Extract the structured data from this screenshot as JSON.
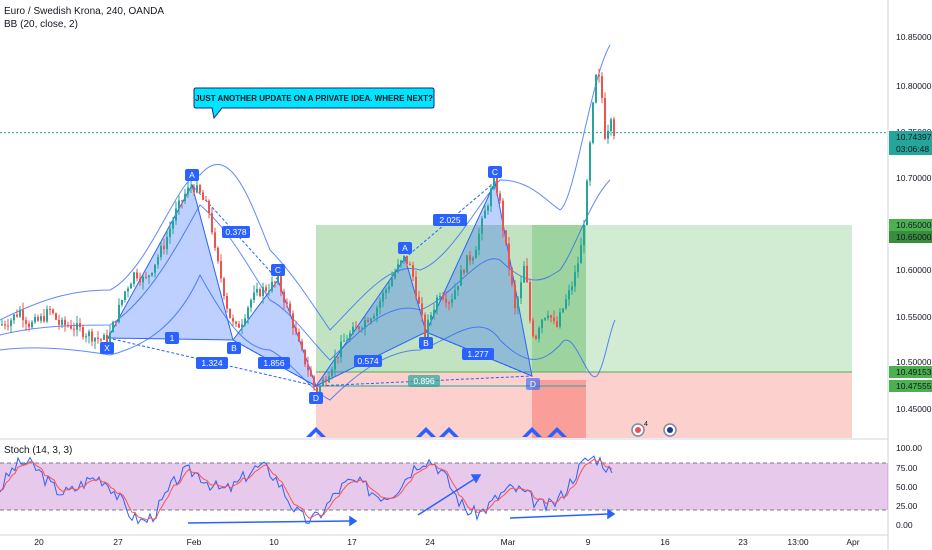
{
  "header": {
    "symbol_title": "Euro / Swedish Krona, 240, OANDA",
    "indicator_bb": "BB (20, close, 2)",
    "indicator_stoch": "Stoch (14, 3, 3)"
  },
  "callout": "JUST ANOTHER UPDATE ON A PRIVATE IDEA. WHERE NEXT?",
  "price_axis": {
    "ticks": [
      "10.85000",
      "10.80000",
      "10.75000",
      "10.70000",
      "10.65000",
      "10.60000",
      "10.55000",
      "10.50000",
      "10.45000"
    ],
    "current_price": "10.74397",
    "countdown": "03:06:48",
    "target_tags": [
      "10.65000",
      "10.65000"
    ],
    "entry_tag": "10.49153",
    "stop_tag": "10.47555"
  },
  "stoch_axis": {
    "ticks": [
      "100.00",
      "75.00",
      "50.00",
      "25.00",
      "0.00"
    ]
  },
  "time_axis": {
    "labels": [
      "20",
      "27",
      "Feb",
      "10",
      "17",
      "24",
      "Mar",
      "9",
      "16",
      "23",
      "13:00",
      "Apr"
    ]
  },
  "patterns": {
    "points_1": [
      "X",
      "A",
      "B",
      "C",
      "D"
    ],
    "ratios_1": [
      "0.378",
      "1",
      "1.324",
      "1.856"
    ],
    "points_2": [
      "A",
      "B",
      "C",
      "D"
    ],
    "ratios_2": [
      "0.574",
      "2.025",
      "1.277",
      "0.896"
    ]
  },
  "event_badge": "4",
  "colors": {
    "bull": "#26a69a",
    "bear": "#ef5350",
    "bb": "#2962ff",
    "target_zone": "#4caf50",
    "stop_zone": "#f44336",
    "pattern": "#2962ff",
    "stoch_k": "#2962ff",
    "stoch_d": "#ff5252",
    "stoch_band": "#9c27b0",
    "price_line": "#26a69a"
  },
  "chart_data": {
    "type": "candlestick",
    "title": "Euro / Swedish Krona, 240, OANDA",
    "ylim": [
      10.41,
      10.87
    ],
    "close_path": [
      [
        0,
        10.545
      ],
      [
        10,
        10.55
      ],
      [
        20,
        10.56
      ],
      [
        30,
        10.545
      ],
      [
        40,
        10.55
      ],
      [
        50,
        10.56
      ],
      [
        60,
        10.545
      ],
      [
        70,
        10.545
      ],
      [
        80,
        10.54
      ],
      [
        90,
        10.535
      ],
      [
        100,
        10.53
      ],
      [
        108,
        10.53
      ],
      [
        115,
        10.55
      ],
      [
        125,
        10.58
      ],
      [
        135,
        10.6
      ],
      [
        145,
        10.59
      ],
      [
        155,
        10.61
      ],
      [
        165,
        10.63
      ],
      [
        175,
        10.66
      ],
      [
        185,
        10.68
      ],
      [
        192,
        10.69
      ],
      [
        200,
        10.68
      ],
      [
        210,
        10.66
      ],
      [
        215,
        10.62
      ],
      [
        222,
        10.59
      ],
      [
        228,
        10.56
      ],
      [
        235,
        10.54
      ],
      [
        242,
        10.55
      ],
      [
        250,
        10.57
      ],
      [
        260,
        10.58
      ],
      [
        270,
        10.585
      ],
      [
        278,
        10.59
      ],
      [
        285,
        10.57
      ],
      [
        292,
        10.55
      ],
      [
        300,
        10.52
      ],
      [
        308,
        10.5
      ],
      [
        316,
        10.475
      ],
      [
        325,
        10.49
      ],
      [
        335,
        10.51
      ],
      [
        345,
        10.53
      ],
      [
        355,
        10.54
      ],
      [
        365,
        10.55
      ],
      [
        375,
        10.56
      ],
      [
        385,
        10.58
      ],
      [
        395,
        10.6
      ],
      [
        405,
        10.615
      ],
      [
        412,
        10.6
      ],
      [
        418,
        10.57
      ],
      [
        425,
        10.535
      ],
      [
        432,
        10.56
      ],
      [
        440,
        10.58
      ],
      [
        450,
        10.57
      ],
      [
        458,
        10.59
      ],
      [
        466,
        10.61
      ],
      [
        474,
        10.62
      ],
      [
        482,
        10.65
      ],
      [
        490,
        10.68
      ],
      [
        495,
        10.695
      ],
      [
        500,
        10.67
      ],
      [
        505,
        10.63
      ],
      [
        510,
        10.6
      ],
      [
        515,
        10.56
      ],
      [
        520,
        10.58
      ],
      [
        525,
        10.61
      ],
      [
        530,
        10.55
      ],
      [
        535,
        10.53
      ],
      [
        540,
        10.55
      ],
      [
        548,
        10.56
      ],
      [
        556,
        10.54
      ],
      [
        562,
        10.56
      ],
      [
        570,
        10.58
      ],
      [
        576,
        10.6
      ],
      [
        582,
        10.63
      ],
      [
        588,
        10.7
      ],
      [
        592,
        10.76
      ],
      [
        597,
        10.81
      ],
      [
        602,
        10.78
      ],
      [
        606,
        10.73
      ],
      [
        610,
        10.77
      ],
      [
        614,
        10.745
      ]
    ],
    "levels": {
      "target": 10.65,
      "entry": 10.49153,
      "stop": 10.47555,
      "last": 10.74397
    },
    "stoch_levels": [
      80,
      20
    ],
    "ylim_stoch": [
      0,
      100
    ]
  }
}
